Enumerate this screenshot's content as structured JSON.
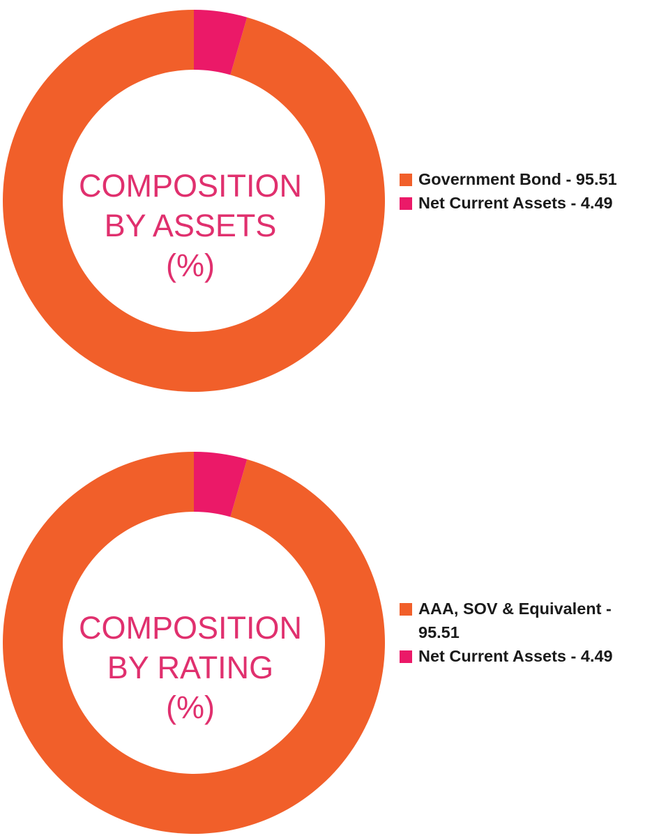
{
  "colors": {
    "government": "#f15f2a",
    "net_current": "#eb1968",
    "center_text": "#e0306e"
  },
  "chart_data": [
    {
      "type": "pie",
      "donut": true,
      "title_lines": [
        "COMPOSITION",
        "BY ASSETS",
        "(%)"
      ],
      "categories": [
        "Government Bond",
        "Net Current Assets"
      ],
      "values": [
        95.51,
        4.49
      ],
      "colors": [
        "#f15f2a",
        "#eb1968"
      ],
      "legend_labels": [
        "Government Bond - 95.51",
        "Net Current Assets - 4.49"
      ],
      "legend_position": "right"
    },
    {
      "type": "pie",
      "donut": true,
      "title_lines": [
        "COMPOSITION",
        "BY RATING",
        "(%)"
      ],
      "categories": [
        "AAA, SOV & Equivalent",
        "Net Current Assets"
      ],
      "values": [
        95.51,
        4.49
      ],
      "colors": [
        "#f15f2a",
        "#eb1968"
      ],
      "legend_labels": [
        "AAA, SOV & Equivalent - 95.51",
        "Net Current Assets - 4.49"
      ],
      "legend_position": "right"
    }
  ]
}
